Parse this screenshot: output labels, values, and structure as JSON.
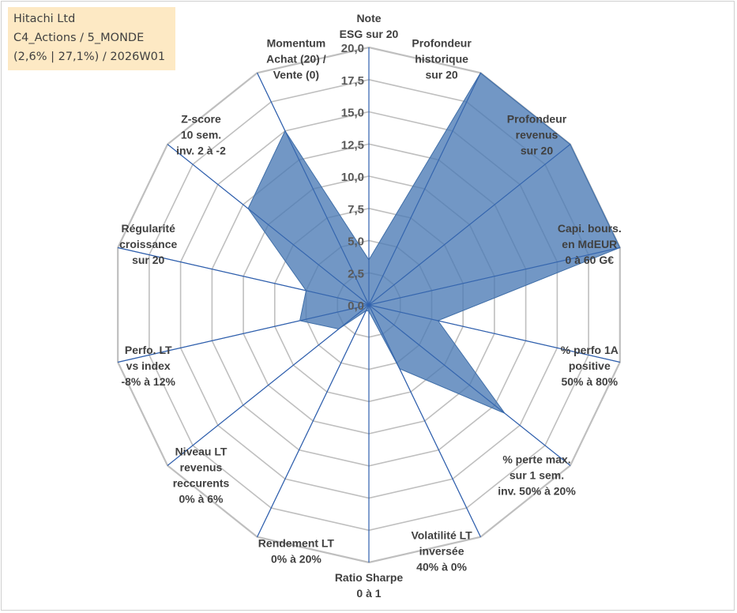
{
  "info": {
    "line1": "Hitachi Ltd",
    "line2": "C4_Actions / 5_MONDE",
    "line3": "(2,6% | 27,1%) / 2026W01"
  },
  "chart_data": {
    "type": "radar",
    "rmin": 0,
    "rmax": 20,
    "tick_step": 2.5,
    "tick_labels": [
      "0,0",
      "2,5",
      "5,0",
      "7,5",
      "10,0",
      "12,5",
      "15,0",
      "17,5",
      "20,0"
    ],
    "axes": [
      {
        "label": [
          "Note",
          "ESG sur 20"
        ],
        "value": 3.5
      },
      {
        "label": [
          "Profondeur",
          "historique",
          "sur 20"
        ],
        "value": 20
      },
      {
        "label": [
          "Profondeur",
          "revenus",
          "sur 20"
        ],
        "value": 20
      },
      {
        "label": [
          "Capi. bours.",
          "en MdEUR",
          "0 à 60 G€"
        ],
        "value": 20
      },
      {
        "label": [
          "% perfo 1A",
          "positive",
          "50% à 80%"
        ],
        "value": 5.5
      },
      {
        "label": [
          "% perte max.",
          "sur 1 sem.",
          "inv. 50% à 20%"
        ],
        "value": 13.5
      },
      {
        "label": [
          "Volatilité LT",
          "inversée",
          "40% à 0%"
        ],
        "value": 5.5
      },
      {
        "label": [
          "Ratio Sharpe",
          "0 à 1"
        ],
        "value": 0.5
      },
      {
        "label": [
          "Rendement LT",
          "0% à 20%"
        ],
        "value": 0.5
      },
      {
        "label": [
          "Niveau LT",
          "revenus",
          "reccurents",
          "0% à 6%"
        ],
        "value": 3.0
      },
      {
        "label": [
          "Perfo. LT",
          "vs index",
          "-8% à 12%"
        ],
        "value": 5.5
      },
      {
        "label": [
          "Régularité",
          "croissance",
          "sur 20"
        ],
        "value": 5.0
      },
      {
        "label": [
          "Z-score",
          "10 sem.",
          "inv. 2 à -2"
        ],
        "value": 12.0
      },
      {
        "label": [
          "Momentum",
          "Achat (20) /",
          "Vente (0)"
        ],
        "value": 15.0
      }
    ],
    "colors": {
      "fill": "#4a7ab5",
      "stroke": "#3f6ea8",
      "grid": "#bfbfbf",
      "spoke": "#2f5fad"
    }
  }
}
